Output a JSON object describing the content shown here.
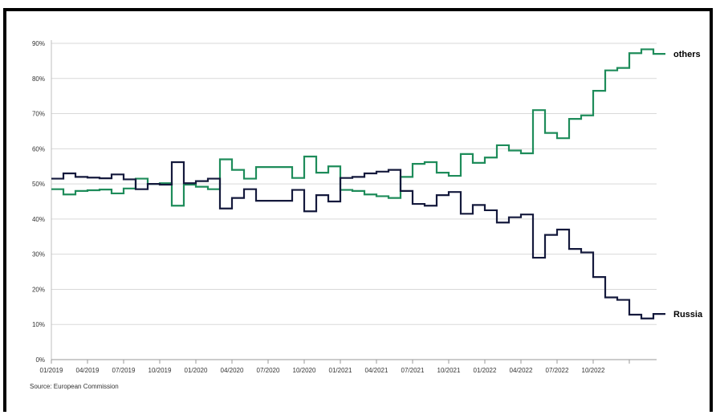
{
  "chart_data": {
    "type": "line",
    "step": true,
    "x_ticks": [
      "01/2019",
      "04/2019",
      "07/2019",
      "10/2019",
      "01/2020",
      "04/2020",
      "07/2020",
      "10/2020",
      "01/2021",
      "04/2021",
      "07/2021",
      "10/2021",
      "01/2022",
      "04/2022",
      "07/2022",
      "10/2022"
    ],
    "y_ticks": [
      "0%",
      "10%",
      "20%",
      "30%",
      "40%",
      "50%",
      "60%",
      "70%",
      "80%",
      "90%"
    ],
    "ylim": [
      0,
      90
    ],
    "grid": true,
    "series": [
      {
        "name": "others",
        "color": "#1e8c5a",
        "values": [
          48.5,
          47,
          48,
          48.2,
          48.4,
          47.3,
          48.7,
          51.5,
          50,
          50.2,
          43.8,
          49.8,
          49.2,
          48.5,
          57,
          54,
          51.5,
          54.8,
          54.8,
          54.8,
          51.7,
          57.8,
          53.2,
          55,
          48.3,
          48,
          47,
          46.5,
          46,
          52,
          55.7,
          56.2,
          53.2,
          52.3,
          58.5,
          56,
          57.5,
          61,
          59.5,
          58.7,
          71,
          64.5,
          63,
          68.5,
          69.5,
          76.5,
          82.3,
          83,
          87.2,
          88.3,
          87
        ]
      },
      {
        "name": "Russia",
        "color": "#14193c",
        "values": [
          51.5,
          53,
          52,
          51.8,
          51.6,
          52.7,
          51.3,
          48.5,
          50,
          49.8,
          56.2,
          50.2,
          50.8,
          51.5,
          43,
          46,
          48.5,
          45.2,
          45.2,
          45.2,
          48.3,
          42.2,
          46.8,
          45,
          51.7,
          52,
          53,
          53.5,
          54,
          48,
          44.3,
          43.8,
          46.8,
          47.7,
          41.5,
          44,
          42.5,
          39,
          40.5,
          41.3,
          29,
          35.5,
          37,
          31.5,
          30.5,
          23.5,
          17.7,
          17,
          12.8,
          11.7,
          13
        ]
      }
    ]
  },
  "source": "Source: European Commission"
}
